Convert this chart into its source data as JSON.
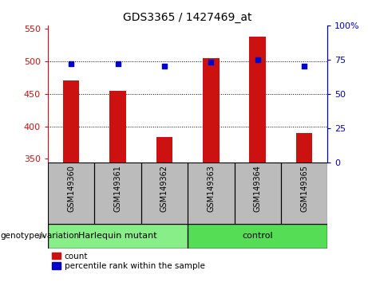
{
  "title": "GDS3365 / 1427469_at",
  "categories": [
    "GSM149360",
    "GSM149361",
    "GSM149362",
    "GSM149363",
    "GSM149364",
    "GSM149365"
  ],
  "counts": [
    470,
    455,
    383,
    505,
    538,
    390
  ],
  "percentiles": [
    72,
    72,
    70,
    73,
    75,
    70
  ],
  "ylim_left": [
    345,
    555
  ],
  "yticks_left": [
    350,
    400,
    450,
    500,
    550
  ],
  "ylim_right": [
    0,
    100
  ],
  "yticks_right": [
    0,
    25,
    50,
    75,
    100
  ],
  "bar_color": "#cc1111",
  "dot_color": "#0000cc",
  "bar_width": 0.35,
  "grid_lines": [
    400,
    450,
    500
  ],
  "groups": [
    {
      "label": "Harlequin mutant",
      "indices": [
        0,
        1,
        2
      ],
      "color": "#88ee88"
    },
    {
      "label": "control",
      "indices": [
        3,
        4,
        5
      ],
      "color": "#55dd55"
    }
  ],
  "group_label": "genotype/variation",
  "legend_count": "count",
  "legend_percentile": "percentile rank within the sample",
  "tick_color_left": "#cc1111",
  "tick_color_right": "#0000cc",
  "bg_xtick": "#bbbbbb",
  "bg_grp": "#77dd77"
}
